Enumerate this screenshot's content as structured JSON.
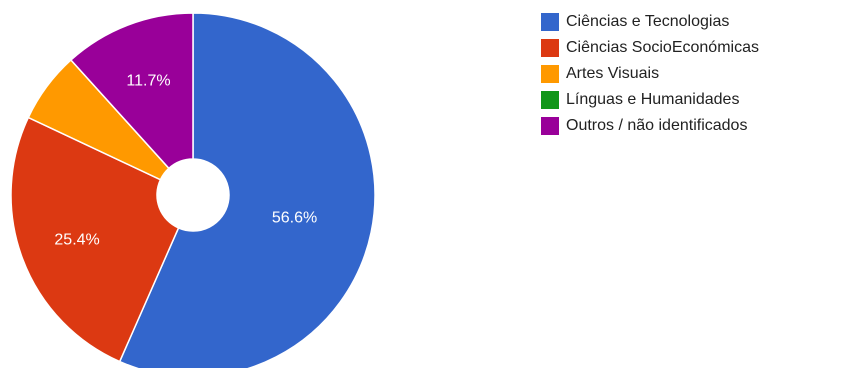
{
  "chart_data": {
    "type": "pie",
    "donut": true,
    "legend_position": "right",
    "slices": [
      {
        "label": "Ciências e Tecnologias",
        "value": 56.6,
        "display": "56.6%",
        "color": "#3366cc"
      },
      {
        "label": "Ciências SocioEconómicas",
        "value": 25.4,
        "display": "25.4%",
        "color": "#dc3912"
      },
      {
        "label": "Artes Visuais",
        "value": 6.3,
        "display": "",
        "color": "#ff9900"
      },
      {
        "label": "Línguas e Humanidades",
        "value": 0,
        "display": "",
        "color": "#109618"
      },
      {
        "label": "Outros / não identificados",
        "value": 11.7,
        "display": "11.7%",
        "color": "#990099"
      }
    ]
  }
}
